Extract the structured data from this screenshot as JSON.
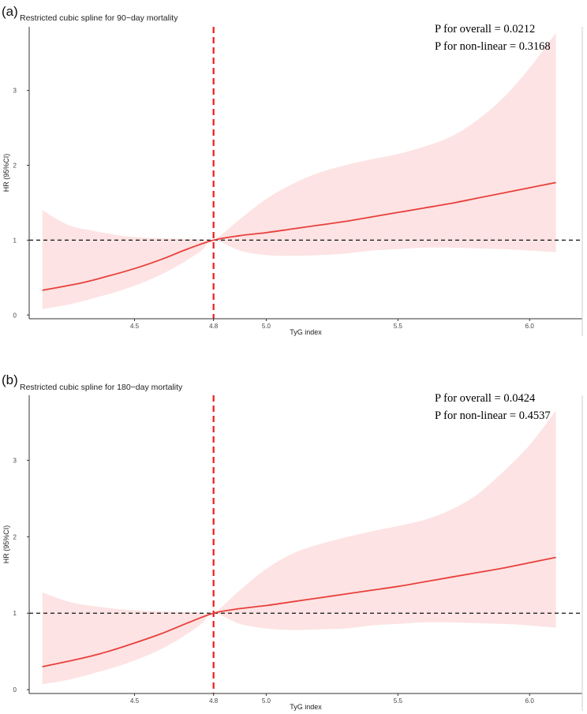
{
  "chart_data": [
    {
      "type": "line",
      "panel_label": "(a)",
      "title": "Restricted cubic spline for 90−day mortality",
      "xlabel": "TyG index",
      "ylabel": "HR (95%CI)",
      "xlim": [
        4.1,
        6.2
      ],
      "ylim": [
        -0.05,
        3.85
      ],
      "xticks": [
        4.5,
        4.8,
        5.0,
        5.5,
        6.0
      ],
      "xtick_labels": [
        "4.5",
        "4.8",
        "5.0",
        "5.5",
        "6.0"
      ],
      "yticks": [
        0,
        1,
        2,
        3
      ],
      "ytick_labels": [
        "0",
        "1",
        "2",
        "3"
      ],
      "reference_line_y": 1,
      "reference_line_x": 4.8,
      "annotations": [
        "P for overall = 0.0212",
        "P for non-linear = 0.3168"
      ],
      "grid": false,
      "colors": {
        "line": "#e8403c",
        "band": "#fde3e3",
        "refx": "#ee1c1c",
        "refy": "#111111"
      },
      "series": [
        {
          "x": [
            4.15,
            4.3,
            4.4,
            4.5,
            4.6,
            4.7,
            4.8,
            4.9,
            5.0,
            5.1,
            5.2,
            5.3,
            5.4,
            5.5,
            5.6,
            5.7,
            5.8,
            5.9,
            6.0,
            6.1
          ],
          "y": [
            0.33,
            0.43,
            0.52,
            0.62,
            0.74,
            0.88,
            1.0,
            1.06,
            1.1,
            1.15,
            1.2,
            1.25,
            1.31,
            1.37,
            1.43,
            1.49,
            1.56,
            1.63,
            1.7,
            1.77
          ]
        }
      ],
      "band": {
        "x": [
          4.15,
          4.25,
          4.35,
          4.45,
          4.55,
          4.65,
          4.75,
          4.8,
          4.9,
          5.0,
          5.1,
          5.2,
          5.3,
          5.4,
          5.5,
          5.6,
          5.7,
          5.8,
          5.9,
          6.0,
          6.1
        ],
        "lower": [
          0.08,
          0.14,
          0.23,
          0.33,
          0.46,
          0.63,
          0.85,
          1.0,
          0.86,
          0.8,
          0.79,
          0.8,
          0.82,
          0.86,
          0.88,
          0.9,
          0.9,
          0.89,
          0.88,
          0.86,
          0.84
        ],
        "upper": [
          1.4,
          1.2,
          1.12,
          1.06,
          1.03,
          1.02,
          1.01,
          1.0,
          1.28,
          1.55,
          1.75,
          1.9,
          2.0,
          2.08,
          2.15,
          2.25,
          2.38,
          2.6,
          2.9,
          3.3,
          3.77
        ]
      }
    },
    {
      "type": "line",
      "panel_label": "(b)",
      "title": "Restricted cubic spline for 180−day mortality",
      "xlabel": "TyG index",
      "ylabel": "HR (95%CI)",
      "xlim": [
        4.1,
        6.2
      ],
      "ylim": [
        -0.05,
        3.85
      ],
      "xticks": [
        4.5,
        4.8,
        5.0,
        5.5,
        6.0
      ],
      "xtick_labels": [
        "4.5",
        "4.8",
        "5.0",
        "5.5",
        "6.0"
      ],
      "yticks": [
        0,
        1,
        2,
        3
      ],
      "ytick_labels": [
        "0",
        "1",
        "2",
        "3"
      ],
      "reference_line_y": 1,
      "reference_line_x": 4.8,
      "annotations": [
        "P for overall = 0.0424",
        "P for non-linear = 0.4537"
      ],
      "grid": false,
      "colors": {
        "line": "#e8403c",
        "band": "#fde3e3",
        "refx": "#ee1c1c",
        "refy": "#111111"
      },
      "series": [
        {
          "x": [
            4.15,
            4.3,
            4.4,
            4.5,
            4.6,
            4.7,
            4.8,
            4.9,
            5.0,
            5.1,
            5.2,
            5.3,
            5.4,
            5.5,
            5.6,
            5.7,
            5.8,
            5.9,
            6.0,
            6.1
          ],
          "y": [
            0.3,
            0.41,
            0.5,
            0.61,
            0.73,
            0.87,
            1.0,
            1.06,
            1.1,
            1.15,
            1.2,
            1.25,
            1.3,
            1.35,
            1.41,
            1.47,
            1.53,
            1.59,
            1.66,
            1.73
          ]
        }
      ],
      "band": {
        "x": [
          4.15,
          4.25,
          4.35,
          4.45,
          4.55,
          4.65,
          4.75,
          4.8,
          4.9,
          5.0,
          5.1,
          5.2,
          5.3,
          5.4,
          5.5,
          5.6,
          5.7,
          5.8,
          5.9,
          6.0,
          6.1
        ],
        "lower": [
          0.07,
          0.13,
          0.22,
          0.32,
          0.45,
          0.62,
          0.85,
          1.0,
          0.86,
          0.8,
          0.78,
          0.79,
          0.8,
          0.84,
          0.86,
          0.88,
          0.88,
          0.87,
          0.86,
          0.84,
          0.81
        ],
        "upper": [
          1.27,
          1.15,
          1.09,
          1.05,
          1.03,
          1.02,
          1.01,
          1.0,
          1.3,
          1.58,
          1.78,
          1.9,
          1.99,
          2.07,
          2.14,
          2.22,
          2.35,
          2.55,
          2.85,
          3.2,
          3.65
        ]
      }
    }
  ]
}
